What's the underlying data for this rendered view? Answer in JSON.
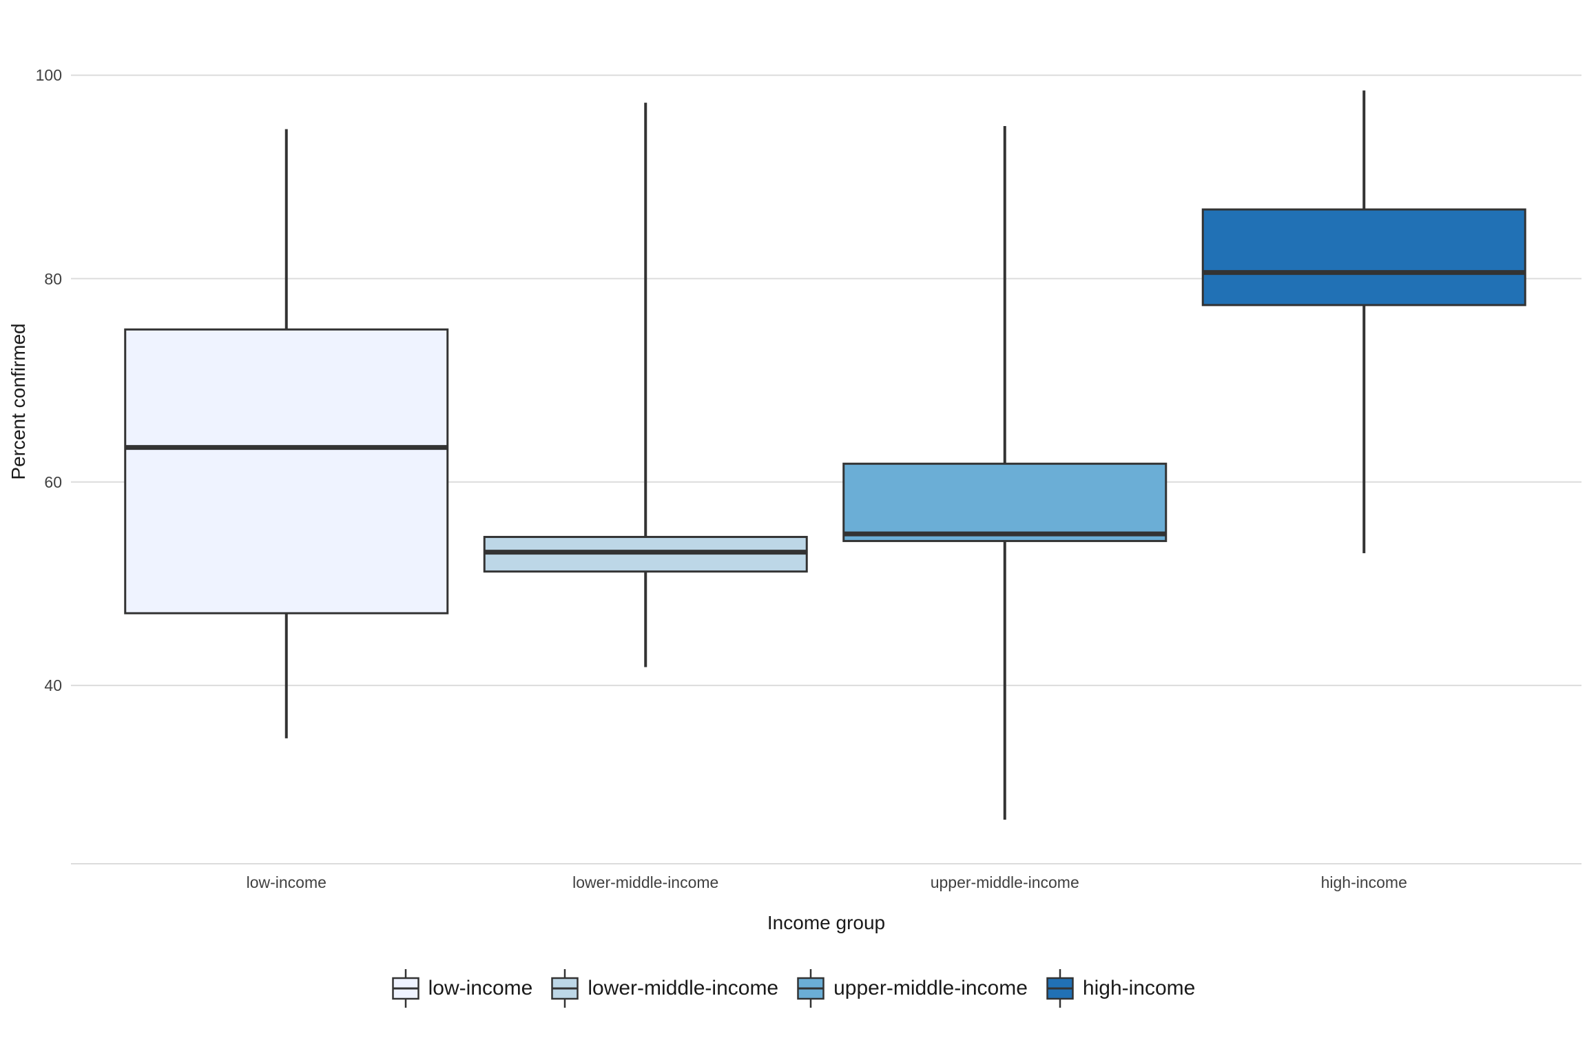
{
  "chart_data": {
    "type": "boxplot",
    "title": "",
    "xlabel": "Income group",
    "ylabel": "Percent confirmed",
    "categories": [
      "low-income",
      "lower-middle-income",
      "upper-middle-income",
      "high-income"
    ],
    "series": [
      {
        "name": "low-income",
        "min": 34.8,
        "q1": 47.1,
        "median": 63.4,
        "q3": 75.0,
        "max": 94.7,
        "color": "#EFF3FF"
      },
      {
        "name": "lower-middle-income",
        "min": 41.8,
        "q1": 51.2,
        "median": 53.1,
        "q3": 54.6,
        "max": 97.3,
        "color": "#BDD7E7"
      },
      {
        "name": "upper-middle-income",
        "min": 26.8,
        "q1": 54.2,
        "median": 54.9,
        "q3": 61.8,
        "max": 95.0,
        "color": "#6BAED6"
      },
      {
        "name": "high-income",
        "min": 53.0,
        "q1": 77.4,
        "median": 80.6,
        "q3": 86.8,
        "max": 98.5,
        "color": "#2171B5"
      }
    ],
    "y_ticks": [
      40,
      60,
      80,
      100
    ],
    "ylim": [
      23,
      103
    ],
    "grid": true,
    "legend_position": "bottom",
    "colors": {
      "box_outline": "#333333",
      "gridline": "#DCDCDC",
      "tick_text": "#404040",
      "title_text": "#1a1a1a",
      "background": "#ffffff"
    }
  }
}
